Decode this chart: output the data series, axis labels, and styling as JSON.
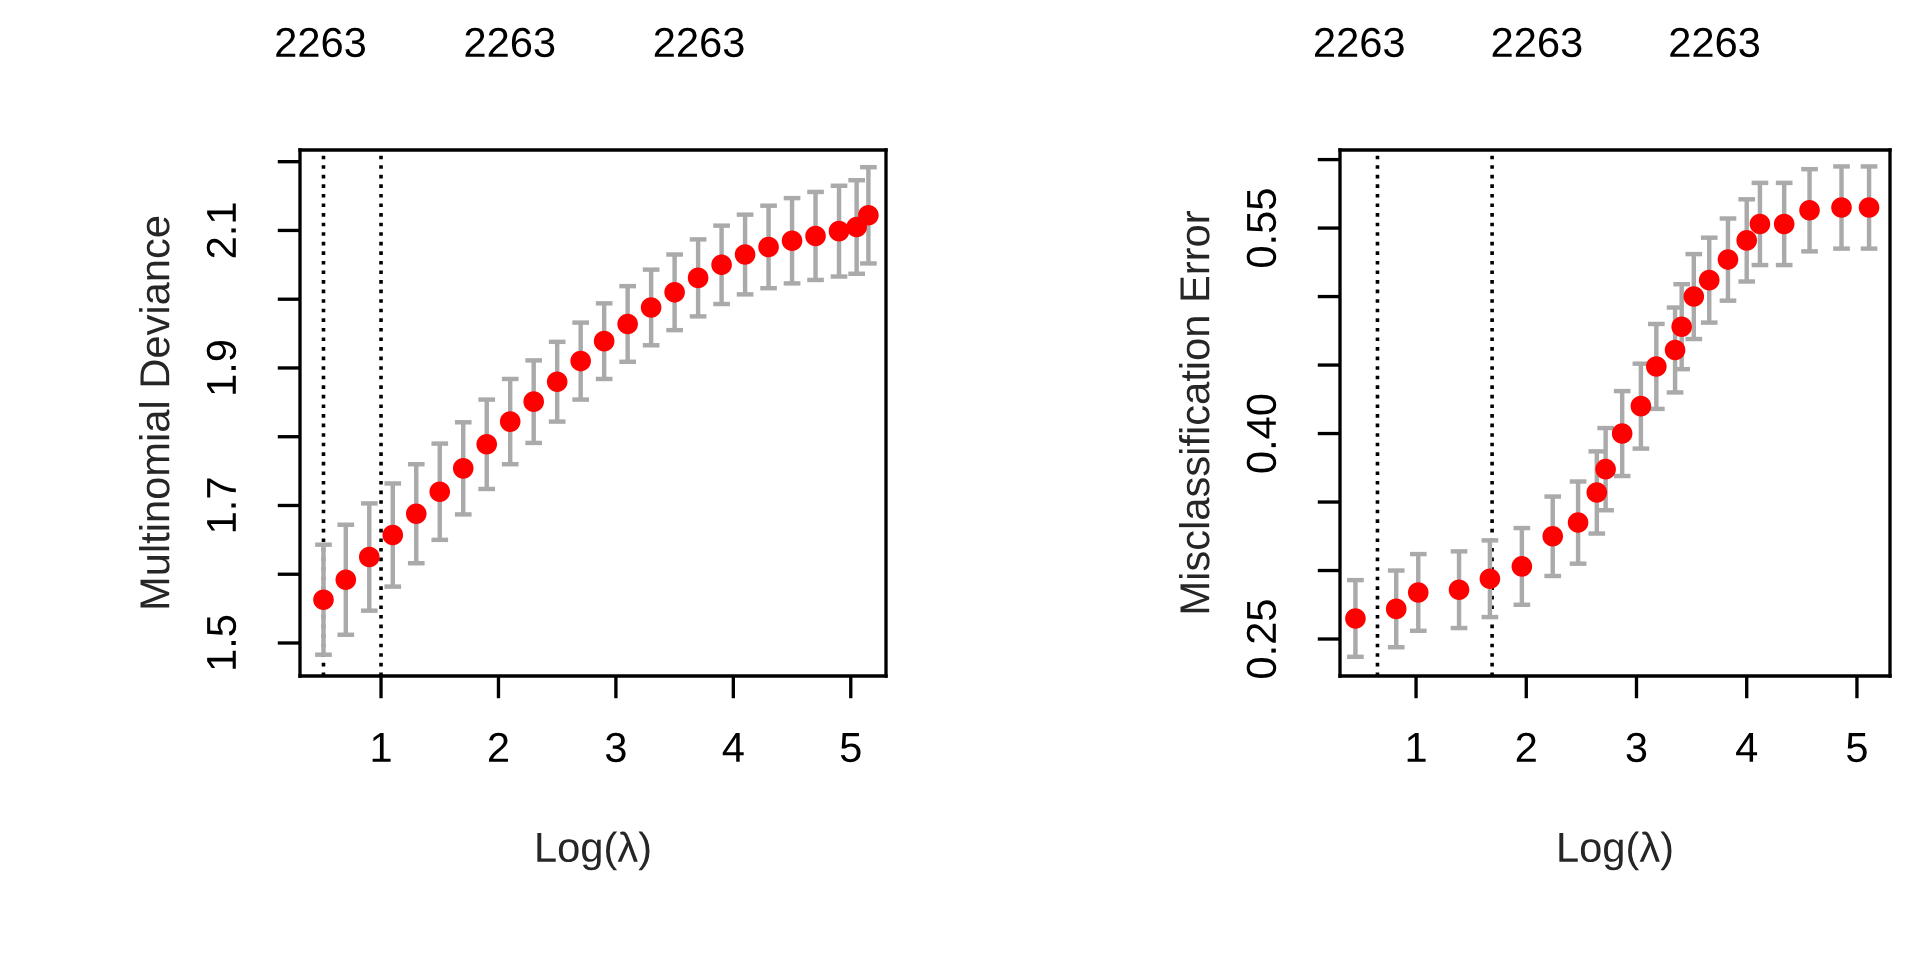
{
  "chart_data": [
    {
      "type": "scatter",
      "xlabel": "Log(λ)",
      "ylabel": "Multinomial Deviance",
      "marker": "circle",
      "grid": false,
      "xlim": [
        0.31,
        5.3
      ],
      "xticks": [
        1,
        2,
        3,
        4,
        5
      ],
      "ylim": [
        1.452,
        2.217
      ],
      "yticks": [
        1.5,
        {
          "value": 1.6,
          "label": null
        },
        1.7,
        {
          "value": 1.8,
          "label": null
        },
        1.9,
        {
          "value": 2.0,
          "label": null
        },
        2.1,
        {
          "value": 2.2,
          "label": null
        }
      ],
      "annotations": [
        "2263",
        "2263",
        "2263"
      ],
      "ref_lines": [
        {
          "axis": "x",
          "value": 0.51,
          "color": "#000000",
          "line_style": "dotted"
        },
        {
          "axis": "x",
          "value": 1.0,
          "color": "#000000",
          "line_style": "dotted"
        }
      ],
      "series": [
        {
          "color": "#ff0000",
          "x": [
            0.51,
            0.7,
            0.9,
            1.1,
            1.3,
            1.5,
            1.7,
            1.9,
            2.1,
            2.3,
            2.5,
            2.7,
            2.9,
            3.1,
            3.3,
            3.5,
            3.7,
            3.9,
            4.1,
            4.3,
            4.5,
            4.7,
            4.9,
            5.05,
            5.15
          ],
          "values": [
            1.563,
            1.592,
            1.625,
            1.657,
            1.688,
            1.72,
            1.754,
            1.789,
            1.822,
            1.851,
            1.88,
            1.91,
            1.939,
            1.964,
            1.988,
            2.01,
            2.031,
            2.05,
            2.065,
            2.076,
            2.085,
            2.092,
            2.099,
            2.105,
            2.122
          ],
          "errors": [
            0.08,
            0.08,
            0.078,
            0.075,
            0.072,
            0.07,
            0.067,
            0.065,
            0.062,
            0.06,
            0.058,
            0.056,
            0.055,
            0.055,
            0.055,
            0.055,
            0.056,
            0.057,
            0.058,
            0.06,
            0.062,
            0.064,
            0.066,
            0.068,
            0.07
          ]
        }
      ]
    },
    {
      "type": "scatter",
      "xlabel": "Log(λ)",
      "ylabel": "Misclassification Error",
      "marker": "circle",
      "grid": false,
      "xlim": [
        0.31,
        5.3
      ],
      "xticks": [
        1,
        2,
        3,
        4,
        5
      ],
      "ylim": [
        0.223,
        0.607
      ],
      "yticks": [
        0.25,
        {
          "value": 0.3,
          "label": null
        },
        {
          "value": 0.35,
          "label": null
        },
        {
          "value": 0.4,
          "label": "0.40"
        },
        {
          "value": 0.45,
          "label": null
        },
        {
          "value": 0.5,
          "label": null
        },
        0.55,
        {
          "value": 0.6,
          "label": null
        }
      ],
      "annotations": [
        "2263",
        "2263",
        "2263"
      ],
      "ref_lines": [
        {
          "axis": "x",
          "value": 0.65,
          "color": "#000000",
          "line_style": "dotted"
        },
        {
          "axis": "x",
          "value": 1.69,
          "color": "#000000",
          "line_style": "dotted"
        }
      ],
      "series": [
        {
          "color": "#ff0000",
          "x": [
            0.45,
            0.82,
            1.02,
            1.39,
            1.67,
            1.96,
            2.24,
            2.47,
            2.64,
            2.72,
            2.87,
            3.04,
            3.18,
            3.35,
            3.41,
            3.52,
            3.66,
            3.83,
            4.0,
            4.12,
            4.34,
            4.57,
            4.86,
            5.11
          ],
          "values": [
            0.265,
            0.272,
            0.284,
            0.286,
            0.294,
            0.303,
            0.325,
            0.335,
            0.357,
            0.374,
            0.4,
            0.42,
            0.449,
            0.461,
            0.478,
            0.5,
            0.512,
            0.527,
            0.541,
            0.553,
            0.553,
            0.563,
            0.565,
            0.565
          ],
          "errors": [
            0.028,
            0.028,
            0.028,
            0.028,
            0.028,
            0.028,
            0.029,
            0.03,
            0.03,
            0.03,
            0.031,
            0.031,
            0.031,
            0.031,
            0.031,
            0.031,
            0.031,
            0.03,
            0.03,
            0.03,
            0.03,
            0.03,
            0.03,
            0.03
          ]
        }
      ]
    }
  ]
}
